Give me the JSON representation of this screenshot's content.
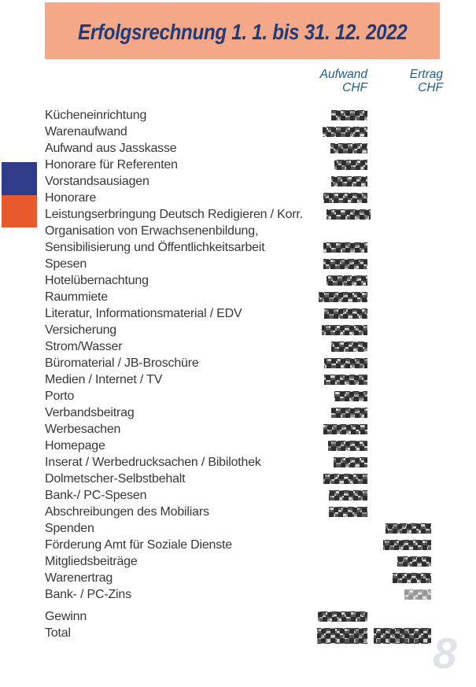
{
  "page": {
    "title": "Erfolgsrechnung 1. 1. bis 31. 12. 2022",
    "page_number": "8"
  },
  "columns": {
    "aufwand_label": "Aufwand",
    "aufwand_unit": "CHF",
    "ertrag_label": "Ertrag",
    "ertrag_unit": "CHF"
  },
  "colors": {
    "header_band": "#f5a887",
    "title_text": "#1c3c7c",
    "column_header_text": "#265d84",
    "body_text": "#383838",
    "accent_blue_square": "#2e3c8a",
    "accent_orange_square": "#e8592e",
    "page_number": "#e0e4e8"
  },
  "rows": [
    {
      "label": "Kücheneinrichtung",
      "aufwand": "redacted",
      "ertrag": null,
      "aw": 46
    },
    {
      "label": "Warenaufwand",
      "aufwand": "redacted",
      "ertrag": null,
      "aw": 57
    },
    {
      "label": "Aufwand aus Jasskasse",
      "aufwand": "redacted",
      "ertrag": null,
      "aw": 47
    },
    {
      "label": "Honorare für Referenten",
      "aufwand": "redacted",
      "ertrag": null,
      "aw": 42
    },
    {
      "label": "Vorstandsausiagen",
      "aufwand": "redacted",
      "ertrag": null,
      "aw": 46
    },
    {
      "label": "Honorare",
      "aufwand": "redacted",
      "ertrag": null,
      "aw": 56
    },
    {
      "label": "Leistungserbringung Deutsch Redigieren / Korr.",
      "aufwand": "redacted",
      "ertrag": null,
      "aw": 56
    },
    {
      "label": "Organisation von Erwachsenenbildung,",
      "aufwand": null,
      "ertrag": null
    },
    {
      "label": "Sensibilisierung und Öffentlichkeitsarbeit",
      "aufwand": "redacted",
      "ertrag": null,
      "aw": 56
    },
    {
      "label": "Spesen",
      "aufwand": "redacted",
      "ertrag": null,
      "aw": 56
    },
    {
      "label": "Hotelübernachtung",
      "aufwand": "redacted",
      "ertrag": null,
      "aw": 52
    },
    {
      "label": "Raummiete",
      "aufwand": "redacted",
      "ertrag": null,
      "aw": 62
    },
    {
      "label": "Literatur, Informationsmaterial / EDV",
      "aufwand": "redacted",
      "ertrag": null,
      "aw": 55
    },
    {
      "label": "Versicherung",
      "aufwand": "redacted",
      "ertrag": null,
      "aw": 58
    },
    {
      "label": "Strom/Wasser",
      "aufwand": "redacted",
      "ertrag": null,
      "aw": 46
    },
    {
      "label": "Büromaterial / JB-Broschüre",
      "aufwand": "redacted",
      "ertrag": null,
      "aw": 55
    },
    {
      "label": "Medien / Internet / TV",
      "aufwand": "redacted",
      "ertrag": null,
      "aw": 55
    },
    {
      "label": "Porto",
      "aufwand": "redacted",
      "ertrag": null,
      "aw": 42
    },
    {
      "label": "Verbandsbeitrag",
      "aufwand": "redacted",
      "ertrag": null,
      "aw": 46
    },
    {
      "label": "Werbesachen",
      "aufwand": "redacted",
      "ertrag": null,
      "aw": 56
    },
    {
      "label": "Homepage",
      "aufwand": "redacted",
      "ertrag": null,
      "aw": 50
    },
    {
      "label": "Inserat / Werbedrucksachen / Bibilothek",
      "aufwand": "redacted",
      "ertrag": null,
      "aw": 43
    },
    {
      "label": "Dolmetscher-Selbstbehalt",
      "aufwand": "redacted",
      "ertrag": null,
      "aw": 56
    },
    {
      "label": "Bank-/ PC-Spesen",
      "aufwand": "redacted",
      "ertrag": null,
      "aw": 49
    },
    {
      "label": "Abschreibungen des Mobiliars",
      "aufwand": "redacted",
      "ertrag": null,
      "aw": 49
    },
    {
      "label": "Spenden",
      "aufwand": null,
      "ertrag": "redacted",
      "ew": 58
    },
    {
      "label": "Förderung Amt für Soziale Dienste",
      "aufwand": null,
      "ertrag": "redacted",
      "ew": 61
    },
    {
      "label": "Mitgliedsbeiträge",
      "aufwand": null,
      "ertrag": "redacted",
      "ew": 43
    },
    {
      "label": "Warenertrag",
      "aufwand": null,
      "ertrag": "redacted",
      "ew": 49
    },
    {
      "label": "Bank- / PC-Zins",
      "aufwand": null,
      "ertrag": "redacted",
      "ew": 34,
      "light": true
    },
    {
      "label": "Gewinn",
      "aufwand": "redacted",
      "ertrag": null,
      "aw": 63,
      "gap_before": true
    },
    {
      "label": "Total",
      "aufwand": "redacted",
      "ertrag": "redacted",
      "aw": 64,
      "ew": 73,
      "tall": true
    }
  ]
}
